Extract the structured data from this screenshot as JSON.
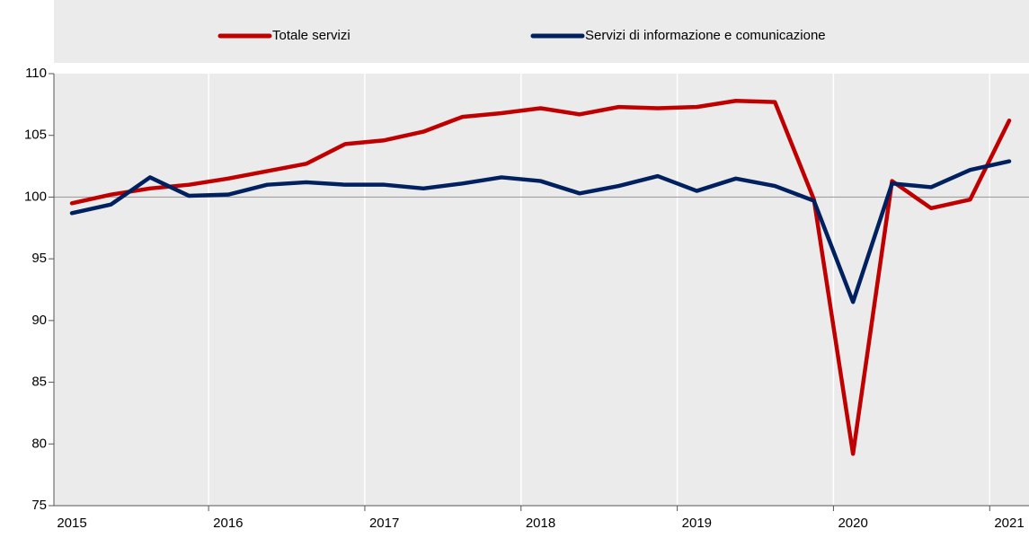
{
  "chart_data": {
    "type": "line",
    "categories": [
      "2015",
      null,
      null,
      null,
      "2016",
      null,
      null,
      null,
      "2017",
      null,
      null,
      null,
      "2018",
      null,
      null,
      null,
      "2019",
      null,
      null,
      null,
      "2020",
      null,
      null,
      null,
      "2021"
    ],
    "series": [
      {
        "name": "Totale servizi",
        "color": "#c00000",
        "values": [
          99.5,
          100.2,
          100.7,
          101.0,
          101.5,
          102.1,
          102.7,
          104.3,
          104.6,
          105.3,
          106.5,
          106.8,
          107.2,
          106.7,
          107.3,
          107.2,
          107.3,
          107.8,
          107.7,
          99.8,
          79.2,
          101.3,
          99.1,
          99.8,
          106.2
        ]
      },
      {
        "name": "Servizi di informazione e comunicazione",
        "color": "#002060",
        "values": [
          98.7,
          99.4,
          101.6,
          100.1,
          100.2,
          101.0,
          101.2,
          101.0,
          101.0,
          100.7,
          101.1,
          101.6,
          101.3,
          100.3,
          100.9,
          101.7,
          100.5,
          101.5,
          100.9,
          99.7,
          91.5,
          101.1,
          100.8,
          102.2,
          102.9
        ]
      }
    ],
    "ylim": [
      75,
      110
    ],
    "yticks": [
      75,
      80,
      85,
      90,
      95,
      100,
      105,
      110
    ],
    "reference_line": 100,
    "legend": "top"
  }
}
